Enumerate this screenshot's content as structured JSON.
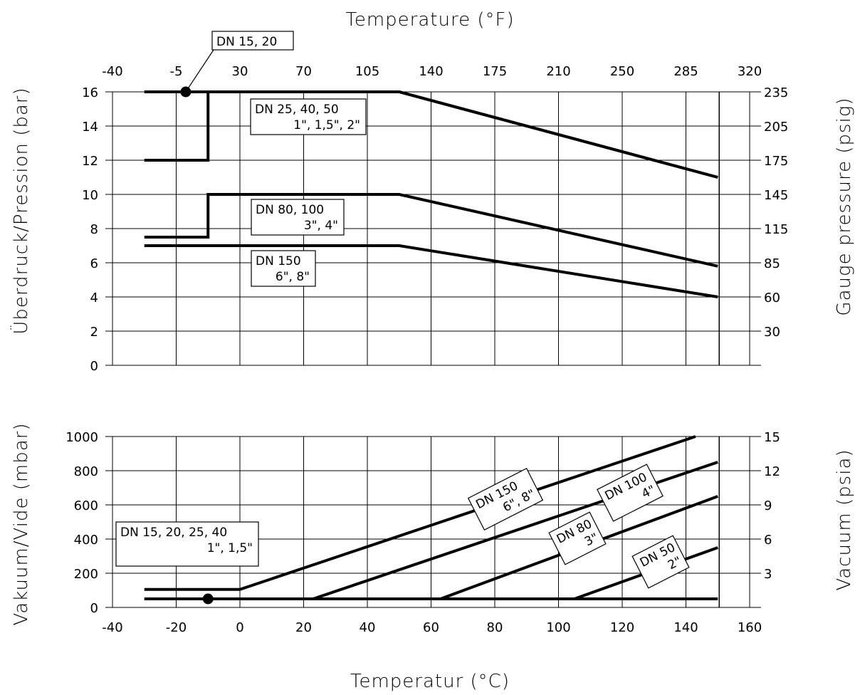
{
  "chart_data": [
    {
      "type": "line",
      "top_title": "Temperature (°F)",
      "ylabel": "Überdruck/Pression (bar)",
      "y2label": "Gauge pressure (psig)",
      "xlim": [
        -40,
        160
      ],
      "ylim": [
        0,
        16
      ],
      "grid": true,
      "f_ticks": [
        "-40",
        "-5",
        "30",
        "70",
        "105",
        "140",
        "175",
        "210",
        "250",
        "285",
        "320"
      ],
      "y_ticks": [
        "0",
        "2",
        "4",
        "6",
        "8",
        "10",
        "12",
        "14",
        "16"
      ],
      "y2_ticks": [
        {
          "label": "235",
          "y": 16
        },
        {
          "label": "205",
          "y": 14
        },
        {
          "label": "175",
          "y": 12
        },
        {
          "label": "145",
          "y": 10
        },
        {
          "label": "115",
          "y": 8
        },
        {
          "label": "85",
          "y": 6
        },
        {
          "label": "60",
          "y": 4
        },
        {
          "label": "30",
          "y": 2
        }
      ],
      "series": [
        {
          "name": "DN 15, 20",
          "points": [
            [
              -30,
              12
            ],
            [
              -10,
              12
            ],
            [
              -10,
              16
            ],
            [
              50,
              16
            ],
            [
              150,
              11
            ]
          ]
        },
        {
          "name": "DN 25, 40, 50 1\", 1,5\", 2\"",
          "points": [
            [
              -30,
              16
            ],
            [
              50,
              16
            ],
            [
              150,
              11
            ]
          ]
        },
        {
          "name": "DN 80, 100 3\", 4\"",
          "points": [
            [
              -30,
              7.5
            ],
            [
              -10,
              7.5
            ],
            [
              -10,
              10
            ],
            [
              50,
              10
            ],
            [
              150,
              5.8
            ]
          ]
        },
        {
          "name": "DN 150 6\", 8\"",
          "points": [
            [
              -30,
              7
            ],
            [
              50,
              7
            ],
            [
              150,
              4
            ]
          ]
        }
      ],
      "annotations": [
        {
          "lines": [
            "DN 15, 20"
          ],
          "marker": [
            -17,
            16
          ]
        },
        {
          "lines": [
            "DN 25, 40, 50",
            "1\", 1,5\", 2\""
          ]
        },
        {
          "lines": [
            "DN 80, 100",
            "3\", 4\""
          ]
        },
        {
          "lines": [
            "DN 150",
            "6\", 8\""
          ]
        }
      ]
    },
    {
      "type": "line",
      "xlabel": "Temperatur (°C)",
      "ylabel": "Vakuum/Vide (mbar)",
      "y2label": "Vacuum (psia)",
      "xlim": [
        -40,
        160
      ],
      "ylim": [
        0,
        1000
      ],
      "grid": true,
      "x_ticks": [
        "-40",
        "-20",
        "0",
        "20",
        "40",
        "60",
        "80",
        "100",
        "120",
        "140",
        "160"
      ],
      "y_ticks": [
        "0",
        "200",
        "400",
        "600",
        "800",
        "1000"
      ],
      "y2_ticks": [
        {
          "label": "15",
          "y": 1000
        },
        {
          "label": "12",
          "y": 800
        },
        {
          "label": "9",
          "y": 600
        },
        {
          "label": "6",
          "y": 400
        },
        {
          "label": "3",
          "y": 200
        }
      ],
      "series": [
        {
          "name": "DN 15, 20, 25, 40 1\", 1,5\"",
          "points": [
            [
              -30,
              50
            ],
            [
              150,
              50
            ]
          ]
        },
        {
          "name": "DN 150 6\", 8\"",
          "points": [
            [
              -30,
              105
            ],
            [
              0,
              105
            ],
            [
              143,
              1000
            ]
          ]
        },
        {
          "name": "DN 100 4\"",
          "points": [
            [
              23,
              50
            ],
            [
              150,
              850
            ]
          ]
        },
        {
          "name": "DN 80 3\"",
          "points": [
            [
              63,
              50
            ],
            [
              150,
              650
            ]
          ]
        },
        {
          "name": "DN 50 2\"",
          "points": [
            [
              105,
              50
            ],
            [
              150,
              350
            ]
          ]
        }
      ],
      "annotations": [
        {
          "lines": [
            "DN 15, 20, 25, 40",
            "1\", 1,5\""
          ],
          "marker": [
            -10,
            50
          ]
        },
        {
          "lines": [
            "DN 150",
            "6\", 8\""
          ]
        },
        {
          "lines": [
            "DN 100",
            "4\""
          ]
        },
        {
          "lines": [
            "DN 80",
            "3\""
          ]
        },
        {
          "lines": [
            "DN 50",
            "2\""
          ]
        }
      ]
    }
  ]
}
